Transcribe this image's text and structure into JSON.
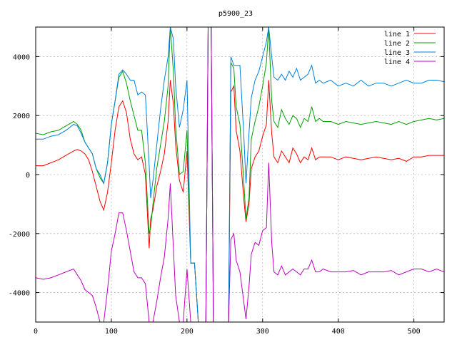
{
  "chart_data": {
    "type": "line",
    "title": "p5900_23",
    "xlabel": "",
    "ylabel": "",
    "xlim": [
      0,
      540
    ],
    "ylim": [
      -5000,
      5000
    ],
    "xticks": [
      0,
      100,
      200,
      300,
      400,
      500
    ],
    "yticks": [
      -4000,
      -2000,
      0,
      2000,
      4000
    ],
    "grid": true,
    "legend_position": "top-right",
    "series": [
      {
        "name": "line 1",
        "color": "#ff0000",
        "x": [
          0,
          10,
          20,
          30,
          40,
          50,
          55,
          60,
          65,
          70,
          75,
          80,
          85,
          90,
          95,
          100,
          105,
          110,
          115,
          120,
          125,
          130,
          135,
          140,
          145,
          150,
          152,
          155,
          160,
          165,
          170,
          175,
          178,
          182,
          185,
          190,
          195,
          200,
          205,
          210,
          215,
          220,
          225,
          228,
          232,
          235,
          240,
          245,
          250,
          255,
          258,
          262,
          265,
          270,
          275,
          278,
          282,
          285,
          290,
          295,
          300,
          305,
          308,
          312,
          315,
          320,
          325,
          330,
          335,
          340,
          345,
          350,
          355,
          360,
          365,
          370,
          375,
          380,
          390,
          400,
          410,
          420,
          430,
          440,
          450,
          460,
          470,
          480,
          490,
          500,
          510,
          520,
          530,
          540
        ],
        "y": [
          300,
          300,
          400,
          500,
          650,
          800,
          850,
          800,
          700,
          500,
          100,
          -400,
          -900,
          -1200,
          -600,
          400,
          1500,
          2300,
          2500,
          2100,
          1200,
          700,
          500,
          600,
          0,
          -2500,
          -1500,
          -1200,
          -400,
          100,
          700,
          1800,
          3200,
          2400,
          1000,
          -200,
          -600,
          800,
          -3000,
          -3000,
          -5000,
          -5000,
          -5000,
          5000,
          5000,
          -5000,
          -5000,
          -5000,
          -5000,
          -5000,
          2800,
          3000,
          1500,
          800,
          -800,
          -1600,
          -1000,
          200,
          600,
          800,
          1300,
          1700,
          3200,
          1400,
          600,
          400,
          800,
          600,
          400,
          900,
          700,
          400,
          600,
          500,
          900,
          500,
          600,
          600,
          600,
          500,
          600,
          550,
          500,
          550,
          600,
          550,
          500,
          550,
          450,
          600,
          600,
          650,
          650,
          650
        ]
      },
      {
        "name": "line 2",
        "color": "#00a000",
        "x": [
          0,
          10,
          20,
          30,
          40,
          50,
          55,
          60,
          65,
          70,
          75,
          80,
          85,
          90,
          95,
          100,
          105,
          110,
          115,
          120,
          125,
          130,
          135,
          140,
          145,
          150,
          152,
          155,
          160,
          165,
          170,
          175,
          178,
          182,
          185,
          190,
          195,
          200,
          205,
          210,
          215,
          220,
          225,
          228,
          232,
          235,
          240,
          245,
          250,
          255,
          258,
          262,
          265,
          270,
          275,
          278,
          282,
          285,
          290,
          295,
          300,
          305,
          308,
          312,
          315,
          320,
          325,
          330,
          335,
          340,
          345,
          350,
          355,
          360,
          365,
          370,
          375,
          380,
          390,
          400,
          410,
          420,
          430,
          440,
          450,
          460,
          470,
          480,
          490,
          500,
          510,
          520,
          530,
          540
        ],
        "y": [
          1400,
          1350,
          1450,
          1500,
          1650,
          1800,
          1700,
          1500,
          1100,
          900,
          700,
          200,
          -100,
          -300,
          400,
          1700,
          2500,
          3300,
          3500,
          3100,
          2500,
          2000,
          1500,
          1500,
          400,
          -2000,
          -1800,
          -1000,
          200,
          1000,
          1800,
          3000,
          5000,
          3500,
          1600,
          0,
          100,
          1500,
          -3000,
          -3000,
          -5000,
          -5000,
          -5000,
          5000,
          5000,
          -5000,
          -5000,
          -5000,
          -5000,
          -5000,
          3800,
          3600,
          2300,
          1700,
          -200,
          -1500,
          -800,
          1200,
          1800,
          2300,
          3000,
          3800,
          5000,
          2500,
          1800,
          1600,
          2200,
          1900,
          1700,
          2000,
          1900,
          1600,
          1900,
          1800,
          2300,
          1800,
          1900,
          1800,
          1800,
          1700,
          1800,
          1750,
          1700,
          1750,
          1800,
          1750,
          1700,
          1800,
          1700,
          1800,
          1850,
          1900,
          1850,
          1900
        ]
      },
      {
        "name": "line 3",
        "color": "#0080e0",
        "x": [
          0,
          10,
          20,
          30,
          40,
          50,
          55,
          60,
          65,
          70,
          75,
          80,
          85,
          90,
          95,
          100,
          105,
          110,
          115,
          120,
          125,
          130,
          135,
          140,
          145,
          150,
          152,
          155,
          160,
          165,
          170,
          175,
          178,
          182,
          185,
          190,
          195,
          200,
          205,
          210,
          215,
          220,
          225,
          228,
          232,
          235,
          240,
          245,
          250,
          255,
          258,
          262,
          265,
          270,
          275,
          278,
          282,
          285,
          290,
          295,
          300,
          305,
          308,
          312,
          315,
          320,
          325,
          330,
          335,
          340,
          345,
          350,
          355,
          360,
          365,
          370,
          375,
          380,
          390,
          400,
          410,
          420,
          430,
          440,
          450,
          460,
          470,
          480,
          490,
          500,
          510,
          520,
          530,
          540
        ],
        "y": [
          1200,
          1200,
          1300,
          1350,
          1500,
          1700,
          1650,
          1400,
          1100,
          900,
          700,
          200,
          0,
          -300,
          400,
          1700,
          2500,
          3400,
          3550,
          3400,
          3200,
          3200,
          2700,
          2800,
          2700,
          300,
          -800,
          -200,
          1000,
          2200,
          3200,
          4000,
          5000,
          4600,
          3000,
          1600,
          2200,
          3200,
          -3000,
          -3000,
          -5000,
          -5000,
          -5000,
          5000,
          5000,
          -5000,
          -5000,
          -5000,
          -5000,
          -5000,
          4000,
          3700,
          3700,
          3700,
          1400,
          -300,
          1400,
          2600,
          3200,
          3500,
          4000,
          4500,
          5000,
          4000,
          3300,
          3200,
          3400,
          3200,
          3500,
          3300,
          3600,
          3200,
          3300,
          3400,
          3700,
          3100,
          3200,
          3100,
          3200,
          3000,
          3100,
          3000,
          3200,
          3000,
          3100,
          3100,
          3000,
          3100,
          3200,
          3100,
          3100,
          3200,
          3200,
          3150
        ]
      },
      {
        "name": "line 4",
        "color": "#c000c0",
        "x": [
          0,
          10,
          20,
          30,
          40,
          50,
          55,
          60,
          65,
          70,
          75,
          80,
          85,
          90,
          95,
          100,
          105,
          110,
          115,
          120,
          125,
          130,
          135,
          140,
          145,
          150,
          152,
          155,
          160,
          165,
          170,
          175,
          178,
          182,
          185,
          190,
          195,
          200,
          205,
          210,
          215,
          220,
          225,
          228,
          232,
          235,
          240,
          245,
          250,
          255,
          258,
          262,
          265,
          270,
          275,
          278,
          282,
          285,
          290,
          295,
          300,
          305,
          308,
          312,
          315,
          320,
          325,
          330,
          335,
          340,
          345,
          350,
          355,
          360,
          365,
          370,
          375,
          380,
          390,
          400,
          410,
          420,
          430,
          440,
          450,
          460,
          470,
          480,
          490,
          500,
          510,
          520,
          530,
          540
        ],
        "y": [
          -3500,
          -3550,
          -3500,
          -3400,
          -3300,
          -3200,
          -3400,
          -3600,
          -3900,
          -4000,
          -4100,
          -4500,
          -5000,
          -5000,
          -3900,
          -2600,
          -2000,
          -1300,
          -1300,
          -1900,
          -2600,
          -3300,
          -3500,
          -3500,
          -3700,
          -5000,
          -5000,
          -5000,
          -4300,
          -3500,
          -2800,
          -1500,
          -300,
          -2500,
          -4100,
          -5000,
          -5000,
          -3200,
          -5000,
          -5000,
          -5000,
          -5000,
          -5000,
          5000,
          5000,
          -5000,
          -5000,
          -5000,
          -5000,
          -5000,
          -2200,
          -2000,
          -2900,
          -3300,
          -4300,
          -4900,
          -3800,
          -2700,
          -2300,
          -2400,
          -1900,
          -1800,
          400,
          -2300,
          -3300,
          -3400,
          -3100,
          -3400,
          -3300,
          -3200,
          -3300,
          -3400,
          -3200,
          -3200,
          -2900,
          -3300,
          -3300,
          -3200,
          -3300,
          -3300,
          -3300,
          -3250,
          -3400,
          -3300,
          -3300,
          -3300,
          -3250,
          -3400,
          -3300,
          -3200,
          -3200,
          -3300,
          -3200,
          -3300
        ]
      }
    ]
  }
}
